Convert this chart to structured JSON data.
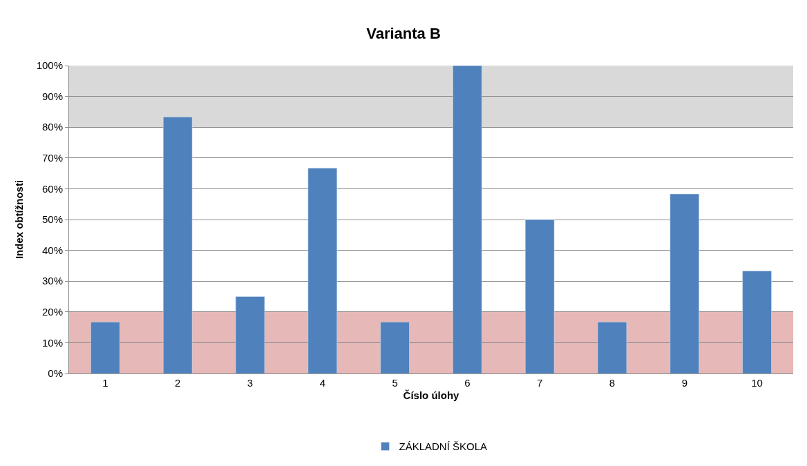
{
  "chart_data": {
    "type": "bar",
    "title": "Varianta B",
    "xlabel": "Číslo úlohy",
    "ylabel": "Index obtížnosti",
    "categories": [
      "1",
      "2",
      "3",
      "4",
      "5",
      "6",
      "7",
      "8",
      "9",
      "10"
    ],
    "series": [
      {
        "name": "ZÁKLADNÍ ŠKOLA",
        "color": "#4f81bd",
        "values": [
          16.7,
          83.3,
          25,
          66.7,
          16.7,
          100,
          50,
          16.7,
          58.3,
          33.3
        ]
      }
    ],
    "ylim": [
      0,
      100
    ],
    "yticks": [
      {
        "value": 0,
        "label": "0%"
      },
      {
        "value": 10,
        "label": "10%"
      },
      {
        "value": 20,
        "label": "20%"
      },
      {
        "value": 30,
        "label": "30%"
      },
      {
        "value": 40,
        "label": "40%"
      },
      {
        "value": 50,
        "label": "50%"
      },
      {
        "value": 60,
        "label": "60%"
      },
      {
        "value": 70,
        "label": "70%"
      },
      {
        "value": 80,
        "label": "80%"
      },
      {
        "value": 90,
        "label": "90%"
      },
      {
        "value": 100,
        "label": "100%"
      }
    ],
    "bands": [
      {
        "axis": "y",
        "from": 0,
        "to": 20,
        "color": "#e6b8b7"
      },
      {
        "axis": "y",
        "from": 80,
        "to": 100,
        "color": "#d9d9d9"
      }
    ],
    "grid": "y",
    "legend": "bottom"
  }
}
